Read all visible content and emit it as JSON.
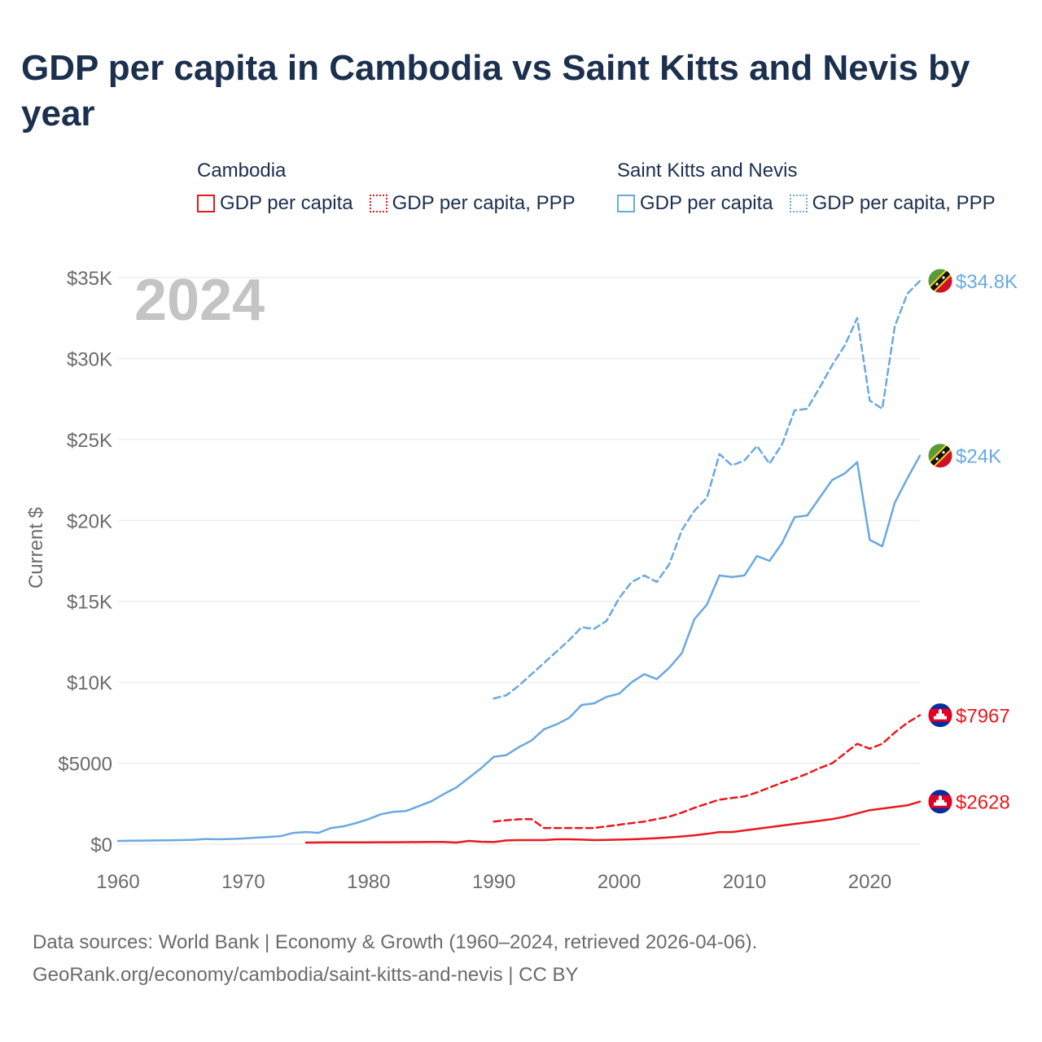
{
  "title": "GDP per capita in Cambodia vs Saint Kitts and Nevis by year",
  "legend": {
    "groups": [
      {
        "title": "Cambodia",
        "entries": [
          {
            "label": "GDP per capita",
            "style": "solid"
          },
          {
            "label": "GDP per capita, PPP",
            "style": "dotted"
          }
        ],
        "color": "#e8191e"
      },
      {
        "title": "Saint Kitts and Nevis",
        "entries": [
          {
            "label": "GDP per capita",
            "style": "solid"
          },
          {
            "label": "GDP per capita, PPP",
            "style": "dotted"
          }
        ],
        "color": "#6aa9e0"
      }
    ]
  },
  "footer": {
    "line1": "Data sources: World Bank | Economy & Growth (1960–2024, retrieved 2026-04-06).",
    "line2": "GeoRank.org/economy/cambodia/saint-kitts-and-nevis | CC BY"
  },
  "chart_data": {
    "type": "line",
    "year_label": "2024",
    "ylabel": "Current $",
    "xlim": [
      1960,
      2024
    ],
    "ylim": [
      0,
      35000
    ],
    "x_ticks": [
      1960,
      1970,
      1980,
      1990,
      2000,
      2010,
      2020
    ],
    "x_tick_labels": [
      "1960",
      "1970",
      "1980",
      "1990",
      "2000",
      "2010",
      "2020"
    ],
    "y_ticks": [
      0,
      5000,
      10000,
      15000,
      20000,
      25000,
      30000,
      35000
    ],
    "y_tick_labels": [
      "$0",
      "$5000",
      "$10K",
      "$15K",
      "$20K",
      "$25K",
      "$30K",
      "$35K"
    ],
    "grid": true,
    "series": [
      {
        "name": "Saint Kitts and Nevis GDP per capita, PPP",
        "country": "Saint Kitts and Nevis",
        "color": "#6aa9e0",
        "dashed": true,
        "end_label": "$34.8K",
        "flag": "kn",
        "x": [
          1990,
          1991,
          1992,
          1993,
          1994,
          1995,
          1996,
          1997,
          1998,
          1999,
          2000,
          2001,
          2002,
          2003,
          2004,
          2005,
          2006,
          2007,
          2008,
          2009,
          2010,
          2011,
          2012,
          2013,
          2014,
          2015,
          2016,
          2017,
          2018,
          2019,
          2020,
          2021,
          2022,
          2023,
          2024
        ],
        "y": [
          9000,
          9200,
          9800,
          10500,
          11200,
          11900,
          12600,
          13400,
          13300,
          13800,
          15200,
          16200,
          16600,
          16200,
          17300,
          19400,
          20600,
          21400,
          24100,
          23400,
          23700,
          24600,
          23500,
          24700,
          26800,
          26900,
          28200,
          29600,
          30800,
          32500,
          27400,
          26900,
          32000,
          34000,
          34800
        ]
      },
      {
        "name": "Saint Kitts and Nevis GDP per capita",
        "country": "Saint Kitts and Nevis",
        "color": "#6aa9e0",
        "dashed": false,
        "end_label": "$24K",
        "flag": "kn",
        "x": [
          1960,
          1961,
          1962,
          1963,
          1964,
          1965,
          1966,
          1967,
          1968,
          1969,
          1970,
          1971,
          1972,
          1973,
          1974,
          1975,
          1976,
          1977,
          1978,
          1979,
          1980,
          1981,
          1982,
          1983,
          1984,
          1985,
          1986,
          1987,
          1988,
          1989,
          1990,
          1991,
          1992,
          1993,
          1994,
          1995,
          1996,
          1997,
          1998,
          1999,
          2000,
          2001,
          2002,
          2003,
          2004,
          2005,
          2006,
          2007,
          2008,
          2009,
          2010,
          2011,
          2012,
          2013,
          2014,
          2015,
          2016,
          2017,
          2018,
          2019,
          2020,
          2021,
          2022,
          2023,
          2024
        ],
        "y": [
          200,
          210,
          220,
          230,
          240,
          250,
          270,
          320,
          300,
          320,
          350,
          400,
          450,
          500,
          700,
          750,
          700,
          1000,
          1100,
          1300,
          1550,
          1850,
          2000,
          2050,
          2350,
          2650,
          3100,
          3500,
          4100,
          4700,
          5400,
          5500,
          6000,
          6400,
          7100,
          7400,
          7800,
          8600,
          8700,
          9100,
          9300,
          10000,
          10500,
          10200,
          10900,
          11800,
          13900,
          14800,
          16600,
          16500,
          16600,
          17800,
          17500,
          18600,
          20200,
          20300,
          21400,
          22500,
          22900,
          23600,
          18800,
          18400,
          21100,
          22600,
          24000
        ]
      },
      {
        "name": "Cambodia GDP per capita, PPP",
        "country": "Cambodia",
        "color": "#e8191e",
        "dashed": true,
        "end_label": "$7967",
        "flag": "kh",
        "x": [
          1990,
          1991,
          1992,
          1993,
          1994,
          1995,
          1996,
          1997,
          1998,
          1999,
          2000,
          2001,
          2002,
          2003,
          2004,
          2005,
          2006,
          2007,
          2008,
          2009,
          2010,
          2011,
          2012,
          2013,
          2014,
          2015,
          2016,
          2017,
          2018,
          2019,
          2020,
          2021,
          2022,
          2023,
          2024
        ],
        "y": [
          1400,
          1480,
          1540,
          1550,
          1000,
          1000,
          1000,
          1000,
          1000,
          1100,
          1200,
          1300,
          1400,
          1550,
          1700,
          1950,
          2250,
          2500,
          2750,
          2850,
          2950,
          3200,
          3500,
          3800,
          4050,
          4350,
          4700,
          5000,
          5600,
          6200,
          5900,
          6200,
          6900,
          7500,
          7967
        ]
      },
      {
        "name": "Cambodia GDP per capita",
        "country": "Cambodia",
        "color": "#e8191e",
        "dashed": false,
        "end_label": "$2628",
        "flag": "kh",
        "x": [
          1975,
          1976,
          1977,
          1978,
          1979,
          1980,
          1981,
          1982,
          1983,
          1984,
          1985,
          1986,
          1987,
          1988,
          1989,
          1990,
          1991,
          1992,
          1993,
          1994,
          1995,
          1996,
          1997,
          1998,
          1999,
          2000,
          2001,
          2002,
          2003,
          2004,
          2005,
          2006,
          2007,
          2008,
          2009,
          2010,
          2011,
          2012,
          2013,
          2014,
          2015,
          2016,
          2017,
          2018,
          2019,
          2020,
          2021,
          2022,
          2023,
          2024
        ],
        "y": [
          100,
          105,
          110,
          112,
          115,
          118,
          120,
          122,
          125,
          130,
          135,
          140,
          100,
          200,
          150,
          130,
          230,
          250,
          250,
          250,
          300,
          300,
          280,
          250,
          260,
          280,
          300,
          330,
          370,
          420,
          480,
          550,
          640,
          750,
          750,
          850,
          950,
          1050,
          1150,
          1250,
          1350,
          1450,
          1550,
          1700,
          1900,
          2100,
          2200,
          2300,
          2400,
          2628
        ]
      }
    ]
  }
}
